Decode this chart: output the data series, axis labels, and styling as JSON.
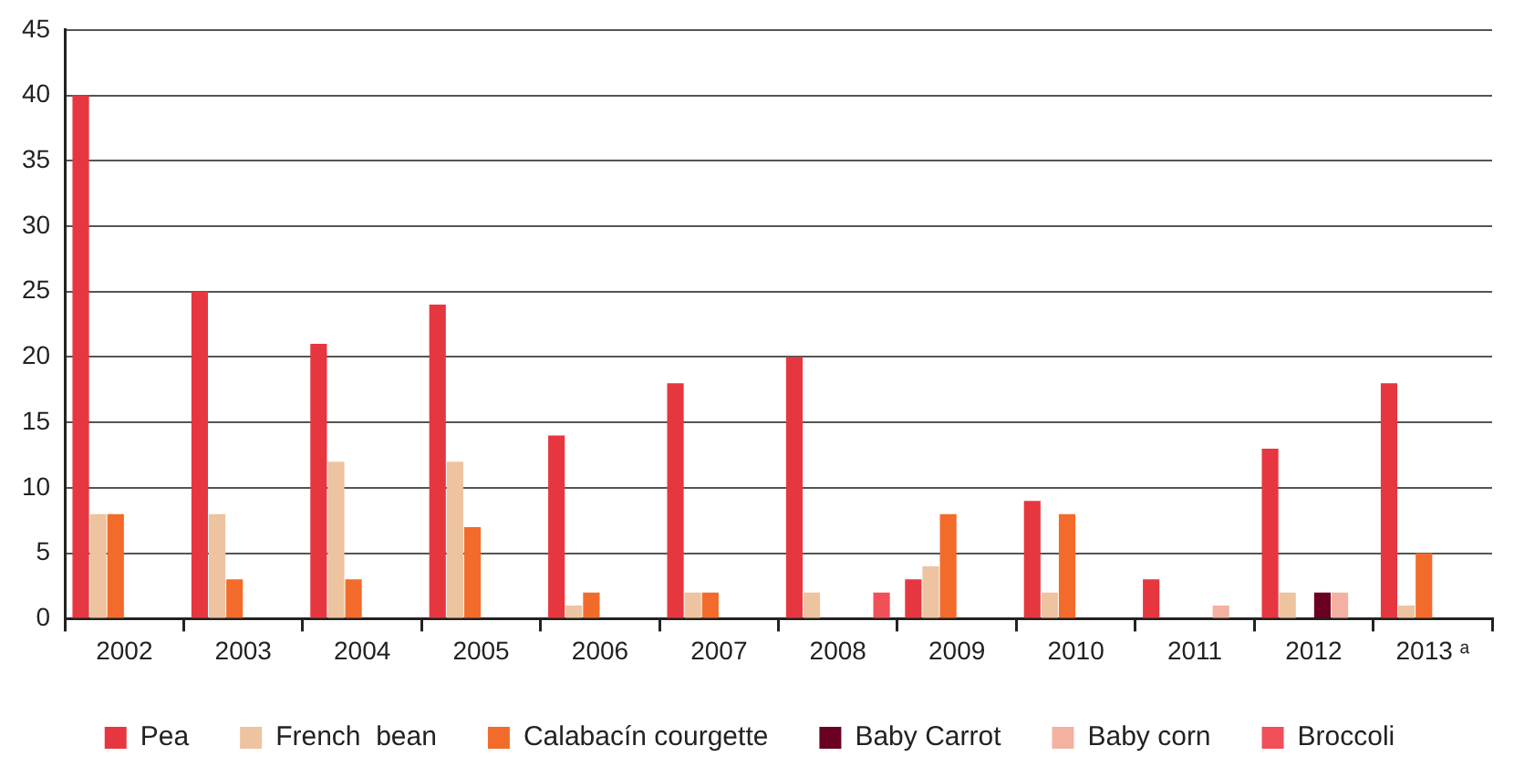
{
  "chart_data": {
    "type": "bar",
    "categories": [
      "2002",
      "2003",
      "2004",
      "2005",
      "2006",
      "2007",
      "2008",
      "2009",
      "2010",
      "2011",
      "2012",
      "2013 ᵃ"
    ],
    "series": [
      {
        "name": "Pea",
        "color": "#e63740",
        "values": [
          40,
          25,
          21,
          24,
          14,
          18,
          20,
          3,
          9,
          3,
          13,
          18
        ]
      },
      {
        "name": "French  bean",
        "color": "#edc3a0",
        "values": [
          8,
          8,
          12,
          12,
          1,
          2,
          2,
          4,
          2,
          null,
          2,
          1
        ]
      },
      {
        "name": "Calabacín courgette",
        "color": "#f26b2a",
        "values": [
          8,
          3,
          3,
          7,
          2,
          2,
          null,
          8,
          8,
          null,
          null,
          5
        ]
      },
      {
        "name": "Baby Carrot",
        "color": "#6b0020",
        "values": [
          null,
          null,
          null,
          null,
          null,
          null,
          null,
          null,
          null,
          null,
          2,
          null
        ]
      },
      {
        "name": "Baby corn",
        "color": "#f4b1a2",
        "values": [
          null,
          null,
          null,
          null,
          null,
          null,
          null,
          null,
          null,
          1,
          2,
          null
        ]
      },
      {
        "name": "Broccoli",
        "color": "#f0505a",
        "values": [
          null,
          null,
          null,
          null,
          null,
          null,
          2,
          null,
          null,
          null,
          null,
          null
        ]
      }
    ],
    "ylim": [
      0,
      45
    ],
    "yticks": [
      0,
      5,
      10,
      15,
      20,
      25,
      30,
      35,
      40,
      45
    ],
    "grid": "y",
    "legend": "bottom"
  }
}
